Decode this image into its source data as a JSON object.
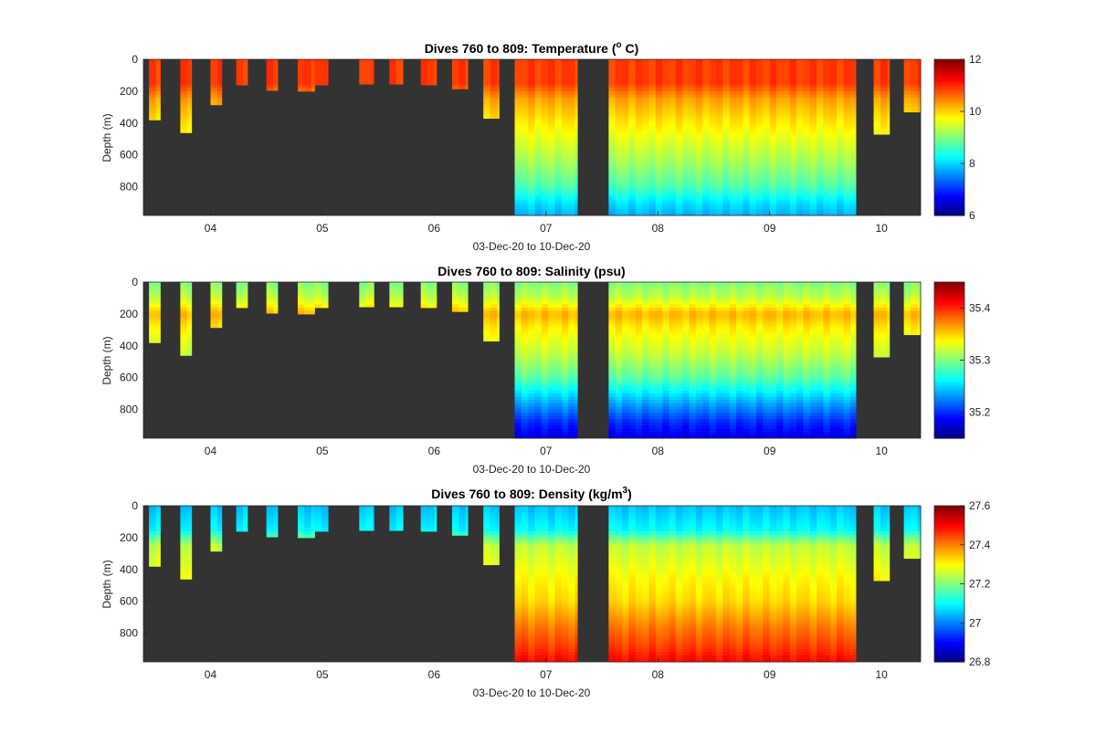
{
  "figure": {
    "background": "#ffffff",
    "plot_background": "#333333"
  },
  "chart_data": [
    {
      "type": "heatmap",
      "variable": "temperature",
      "title_main": "Dives 760 to 809: Temperature (",
      "title_sup": "o",
      "title_tail": " C)",
      "xlabel": "03-Dec-20 to 10-Dec-20",
      "ylabel": "Depth (m)",
      "x_day_range": [
        3.4,
        10.35
      ],
      "x_tick_values": [
        4,
        5,
        6,
        7,
        8,
        9,
        10
      ],
      "x_tick_labels": [
        "04",
        "05",
        "06",
        "07",
        "08",
        "09",
        "10"
      ],
      "y_range": [
        0,
        980
      ],
      "y_reversed": true,
      "y_tick_values": [
        0,
        200,
        400,
        600,
        800
      ],
      "y_tick_labels": [
        "0",
        "200",
        "400",
        "600",
        "800"
      ],
      "colorbar_range": [
        6,
        12
      ],
      "colorbar_tick_values": [
        6,
        8,
        10,
        12
      ],
      "colorbar_tick_labels": [
        "6",
        "8",
        "10",
        "12"
      ],
      "colormap": "jet",
      "profile_values": [
        {
          "depth": 0,
          "value": 10.9
        },
        {
          "depth": 150,
          "value": 10.9
        },
        {
          "depth": 250,
          "value": 10.3
        },
        {
          "depth": 350,
          "value": 10.0
        },
        {
          "depth": 500,
          "value": 9.6
        },
        {
          "depth": 650,
          "value": 9.2
        },
        {
          "depth": 800,
          "value": 8.7
        },
        {
          "depth": 900,
          "value": 8.1
        },
        {
          "depth": 980,
          "value": 7.8
        }
      ]
    },
    {
      "type": "heatmap",
      "variable": "salinity",
      "title_main": "Dives 760 to 809: Salinity (psu)",
      "title_sup": "",
      "title_tail": "",
      "xlabel": "03-Dec-20 to 10-Dec-20",
      "ylabel": "Depth (m)",
      "x_day_range": [
        3.4,
        10.35
      ],
      "x_tick_values": [
        4,
        5,
        6,
        7,
        8,
        9,
        10
      ],
      "x_tick_labels": [
        "04",
        "05",
        "06",
        "07",
        "08",
        "09",
        "10"
      ],
      "y_range": [
        0,
        980
      ],
      "y_reversed": true,
      "y_tick_values": [
        0,
        200,
        400,
        600,
        800
      ],
      "y_tick_labels": [
        "0",
        "200",
        "400",
        "600",
        "800"
      ],
      "colorbar_range": [
        35.15,
        35.45
      ],
      "colorbar_tick_values": [
        35.2,
        35.3,
        35.4
      ],
      "colorbar_tick_labels": [
        "35.2",
        "35.3",
        "35.4"
      ],
      "colormap": "jet",
      "profile_values": [
        {
          "depth": 0,
          "value": 35.3
        },
        {
          "depth": 100,
          "value": 35.32
        },
        {
          "depth": 200,
          "value": 35.36
        },
        {
          "depth": 300,
          "value": 35.34
        },
        {
          "depth": 450,
          "value": 35.32
        },
        {
          "depth": 600,
          "value": 35.29
        },
        {
          "depth": 750,
          "value": 35.24
        },
        {
          "depth": 880,
          "value": 35.2
        },
        {
          "depth": 980,
          "value": 35.18
        }
      ]
    },
    {
      "type": "heatmap",
      "variable": "density",
      "title_main": "Dives 760 to 809: Density (kg/m",
      "title_sup": "3",
      "title_tail": ")",
      "xlabel": "03-Dec-20 to 10-Dec-20",
      "ylabel": "Depth (m)",
      "x_day_range": [
        3.4,
        10.35
      ],
      "x_tick_values": [
        4,
        5,
        6,
        7,
        8,
        9,
        10
      ],
      "x_tick_labels": [
        "04",
        "05",
        "06",
        "07",
        "08",
        "09",
        "10"
      ],
      "y_range": [
        0,
        980
      ],
      "y_reversed": true,
      "y_tick_values": [
        0,
        200,
        400,
        600,
        800
      ],
      "y_tick_labels": [
        "0",
        "200",
        "400",
        "600",
        "800"
      ],
      "colorbar_range": [
        26.8,
        27.6
      ],
      "colorbar_tick_values": [
        26.8,
        27.0,
        27.2,
        27.4,
        27.6
      ],
      "colorbar_tick_labels": [
        "26.8",
        "27",
        "27.2",
        "27.4",
        "27.6"
      ],
      "colormap": "jet",
      "profile_values": [
        {
          "depth": 0,
          "value": 27.05
        },
        {
          "depth": 150,
          "value": 27.1
        },
        {
          "depth": 250,
          "value": 27.25
        },
        {
          "depth": 450,
          "value": 27.3
        },
        {
          "depth": 600,
          "value": 27.33
        },
        {
          "depth": 750,
          "value": 27.4
        },
        {
          "depth": 880,
          "value": 27.45
        },
        {
          "depth": 980,
          "value": 27.5
        }
      ]
    }
  ],
  "profiles": [
    {
      "start": 3.45,
      "end": 3.55,
      "max_depth": 380
    },
    {
      "start": 3.73,
      "end": 3.83,
      "max_depth": 460
    },
    {
      "start": 4.0,
      "end": 4.1,
      "max_depth": 285
    },
    {
      "start": 4.23,
      "end": 4.33,
      "max_depth": 160
    },
    {
      "start": 4.5,
      "end": 4.6,
      "max_depth": 195
    },
    {
      "start": 4.78,
      "end": 4.93,
      "max_depth": 200
    },
    {
      "start": 4.93,
      "end": 5.05,
      "max_depth": 160
    },
    {
      "start": 5.33,
      "end": 5.46,
      "max_depth": 155
    },
    {
      "start": 5.6,
      "end": 5.72,
      "max_depth": 155
    },
    {
      "start": 5.88,
      "end": 6.02,
      "max_depth": 160
    },
    {
      "start": 6.16,
      "end": 6.3,
      "max_depth": 185
    },
    {
      "start": 6.44,
      "end": 6.58,
      "max_depth": 370
    },
    {
      "start": 6.72,
      "end": 7.28,
      "max_depth": 980
    },
    {
      "start": 7.56,
      "end": 9.77,
      "max_depth": 980
    },
    {
      "start": 9.93,
      "end": 10.07,
      "max_depth": 470
    },
    {
      "start": 10.2,
      "end": 10.35,
      "max_depth": 330
    }
  ]
}
